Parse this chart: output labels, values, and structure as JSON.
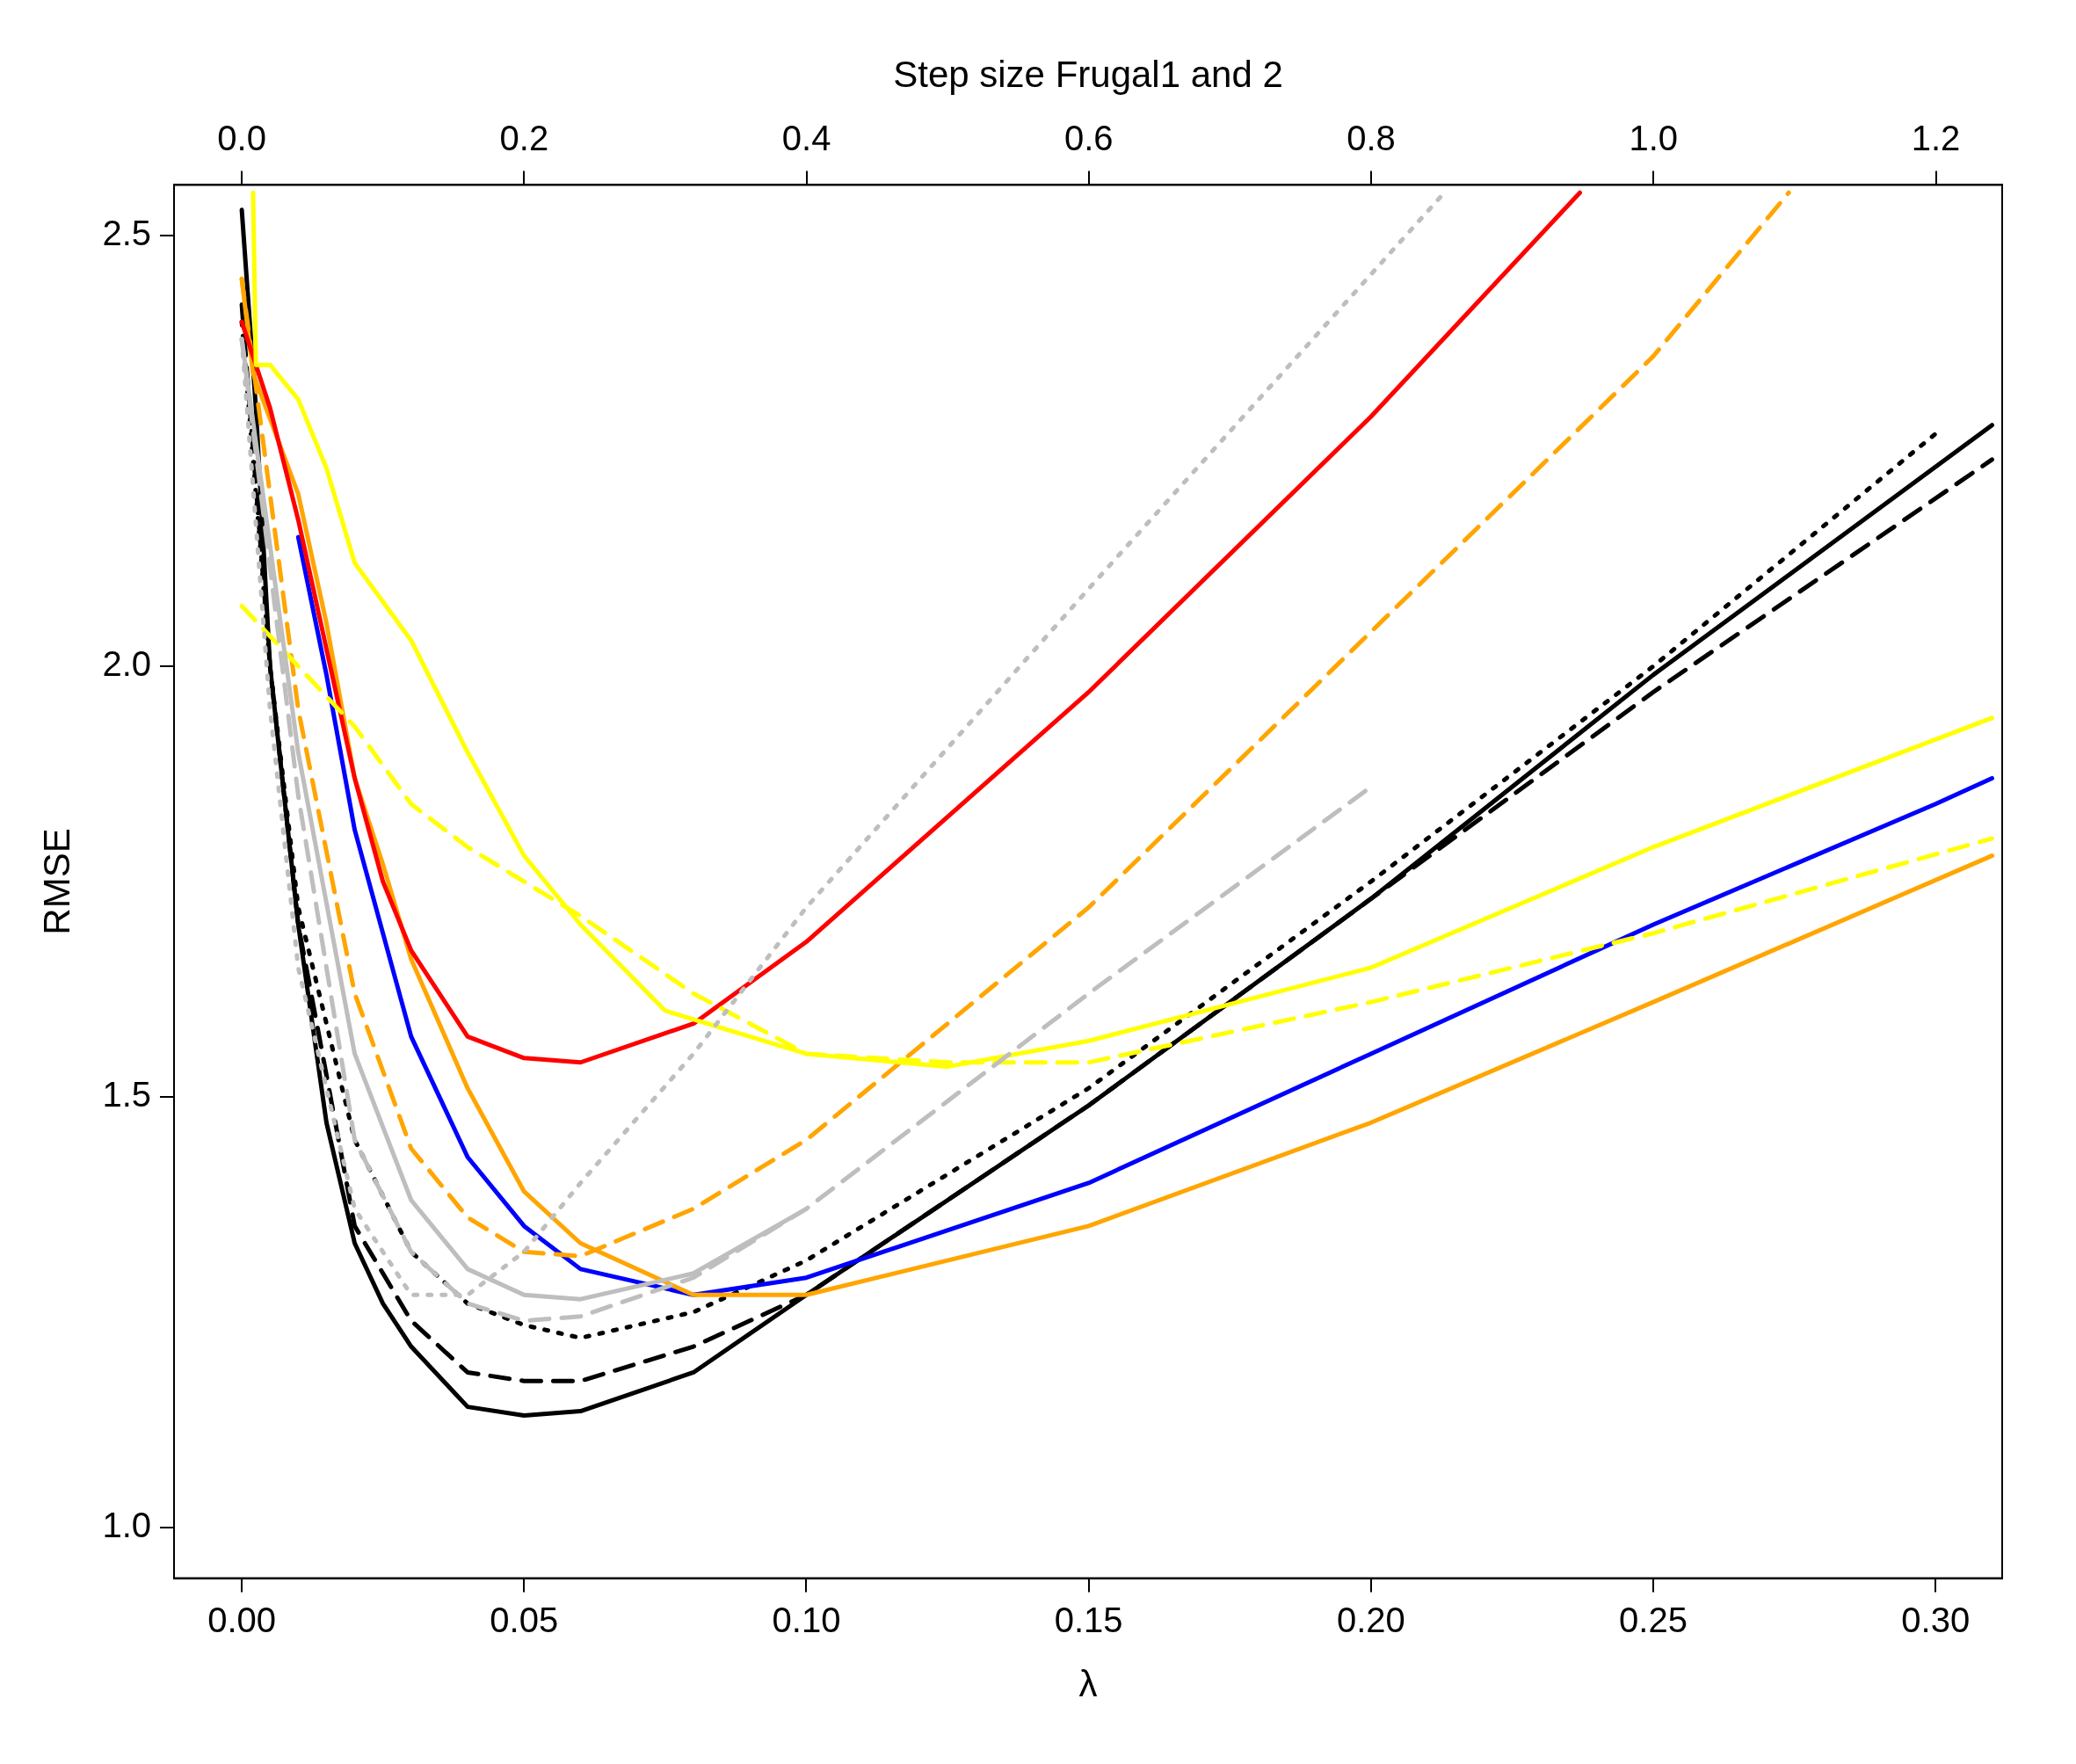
{
  "chart_data": {
    "type": "line",
    "xlabel": "λ",
    "ylabel": "RMSE",
    "x2label": "Step size Frugal1 and 2",
    "xlim": [
      -0.012,
      0.3118
    ],
    "xticks": [
      {
        "value": 0,
        "label": "0.00"
      },
      {
        "value": 0.05,
        "label": "0.05"
      },
      {
        "value": 0.1,
        "label": "0.10"
      },
      {
        "value": 0.15,
        "label": "0.15"
      },
      {
        "value": 0.2,
        "label": "0.20"
      },
      {
        "value": 0.25,
        "label": "0.25"
      },
      {
        "value": 0.3,
        "label": "0.30"
      }
    ],
    "x2lim": [
      -0.048,
      1.247
    ],
    "x2ticks": [
      {
        "value": 0,
        "label": "0.0"
      },
      {
        "value": 0.2,
        "label": "0.2"
      },
      {
        "value": 0.4,
        "label": "0.4"
      },
      {
        "value": 0.6,
        "label": "0.6"
      },
      {
        "value": 0.8,
        "label": "0.8"
      },
      {
        "value": 1,
        "label": "1.0"
      },
      {
        "value": 1.2,
        "label": "1.2"
      }
    ],
    "ylim": [
      0.941,
      2.559
    ],
    "yticks": [
      {
        "value": 1,
        "label": "1.0"
      },
      {
        "value": 1.5,
        "label": "1.5"
      },
      {
        "value": 2,
        "label": "2.0"
      },
      {
        "value": 2.5,
        "label": "2.5"
      }
    ],
    "grid": false,
    "legend": false,
    "marker": "none",
    "series": [
      {
        "color": "#bebebe",
        "line_style": "dotted",
        "x": [
          0,
          0.005,
          0.01,
          0.02,
          0.03,
          0.04,
          0.05,
          0.06,
          0.08,
          0.1,
          0.15,
          0.213
        ],
        "values": [
          2.38,
          1.95,
          1.65,
          1.37,
          1.27,
          1.27,
          1.32,
          1.4,
          1.55,
          1.72,
          2.09,
          2.55
        ]
      },
      {
        "color": "#bebebe",
        "line_style": "dashed",
        "x": [
          0,
          0.01,
          0.02,
          0.03,
          0.04,
          0.05,
          0.06,
          0.08,
          0.1,
          0.15,
          0.2
        ],
        "values": [
          2.38,
          1.85,
          1.45,
          1.32,
          1.26,
          1.24,
          1.245,
          1.29,
          1.37,
          1.62,
          1.86
        ]
      },
      {
        "color": "#bebebe",
        "line_style": "solid",
        "x": [
          0,
          0.01,
          0.02,
          0.03,
          0.04,
          0.05,
          0.06,
          0.08,
          0.1
        ],
        "values": [
          2.38,
          1.9,
          1.55,
          1.38,
          1.3,
          1.27,
          1.265,
          1.295,
          1.37
        ]
      },
      {
        "color": "#ffff00",
        "line_style": "dashed",
        "x": [
          0,
          0.01,
          0.02,
          0.03,
          0.04,
          0.05,
          0.06,
          0.08,
          0.1,
          0.125,
          0.15,
          0.2,
          0.25,
          0.31
        ],
        "values": [
          2.07,
          2.0,
          1.93,
          1.84,
          1.79,
          1.75,
          1.71,
          1.62,
          1.55,
          1.54,
          1.54,
          1.61,
          1.69,
          1.8
        ]
      },
      {
        "color": "#ffff00",
        "line_style": "solid",
        "x": [
          0.002,
          0.0025,
          0.005,
          0.01,
          0.015,
          0.02,
          0.03,
          0.04,
          0.05,
          0.06,
          0.075,
          0.1,
          0.125,
          0.15,
          0.2,
          0.25,
          0.31
        ],
        "values": [
          2.55,
          2.35,
          2.35,
          2.31,
          2.23,
          2.12,
          2.03,
          1.9,
          1.78,
          1.7,
          1.6,
          1.55,
          1.535,
          1.565,
          1.65,
          1.79,
          1.94
        ]
      },
      {
        "color": "#ff0000",
        "line_style": "solid",
        "x": [
          0,
          0.005,
          0.01,
          0.02,
          0.025,
          0.03,
          0.04,
          0.05,
          0.06,
          0.08,
          0.1,
          0.15,
          0.2,
          0.237
        ],
        "values": [
          2.4,
          2.3,
          2.17,
          1.87,
          1.75,
          1.67,
          1.57,
          1.545,
          1.54,
          1.585,
          1.68,
          1.97,
          2.29,
          2.55
        ]
      },
      {
        "color": "#ffa500",
        "line_style": "dashed",
        "x": [
          0,
          0.005,
          0.01,
          0.02,
          0.03,
          0.04,
          0.05,
          0.06,
          0.08,
          0.1,
          0.15,
          0.2,
          0.25,
          0.274
        ],
        "values": [
          2.45,
          2.2,
          1.95,
          1.62,
          1.44,
          1.36,
          1.32,
          1.315,
          1.37,
          1.45,
          1.72,
          2.04,
          2.36,
          2.55
        ]
      },
      {
        "color": "#ffa500",
        "line_style": "solid",
        "x": [
          0,
          0.002,
          0.01,
          0.015,
          0.02,
          0.025,
          0.03,
          0.04,
          0.05,
          0.06,
          0.08,
          0.1,
          0.15,
          0.2,
          0.25,
          0.31
        ],
        "values": [
          2.45,
          2.34,
          2.2,
          2.05,
          1.87,
          1.77,
          1.66,
          1.51,
          1.39,
          1.33,
          1.27,
          1.27,
          1.35,
          1.47,
          1.61,
          1.78
        ]
      },
      {
        "color": "#0000ff",
        "line_style": "solid",
        "x": [
          0.01,
          0.015,
          0.02,
          0.025,
          0.03,
          0.04,
          0.05,
          0.06,
          0.08,
          0.1,
          0.15,
          0.2,
          0.25,
          0.3,
          0.31
        ],
        "values": [
          2.15,
          1.99,
          1.81,
          1.69,
          1.57,
          1.43,
          1.35,
          1.3,
          1.27,
          1.29,
          1.4,
          1.55,
          1.7,
          1.84,
          1.87
        ]
      },
      {
        "color": "#000000",
        "line_style": "dotted",
        "x": [
          0,
          0.005,
          0.01,
          0.02,
          0.03,
          0.04,
          0.05,
          0.06,
          0.08,
          0.1,
          0.15,
          0.2,
          0.25,
          0.3
        ],
        "values": [
          2.4,
          2.0,
          1.72,
          1.45,
          1.32,
          1.26,
          1.235,
          1.22,
          1.25,
          1.31,
          1.51,
          1.75,
          2.0,
          2.27
        ]
      },
      {
        "color": "#000000",
        "line_style": "dashed",
        "x": [
          0,
          0.005,
          0.01,
          0.02,
          0.03,
          0.04,
          0.05,
          0.06,
          0.08,
          0.1,
          0.15,
          0.2,
          0.25,
          0.31
        ],
        "values": [
          2.42,
          2.0,
          1.7,
          1.35,
          1.24,
          1.18,
          1.17,
          1.17,
          1.21,
          1.27,
          1.49,
          1.73,
          1.97,
          2.24
        ]
      },
      {
        "color": "#000000",
        "line_style": "solid",
        "x": [
          0,
          0.0025,
          0.005,
          0.01,
          0.015,
          0.02,
          0.025,
          0.03,
          0.04,
          0.05,
          0.06,
          0.08,
          0.1,
          0.15,
          0.2,
          0.25,
          0.31
        ],
        "values": [
          2.53,
          2.3,
          2.0,
          1.7,
          1.47,
          1.33,
          1.26,
          1.21,
          1.14,
          1.13,
          1.135,
          1.18,
          1.27,
          1.49,
          1.73,
          1.99,
          2.28
        ]
      }
    ]
  }
}
